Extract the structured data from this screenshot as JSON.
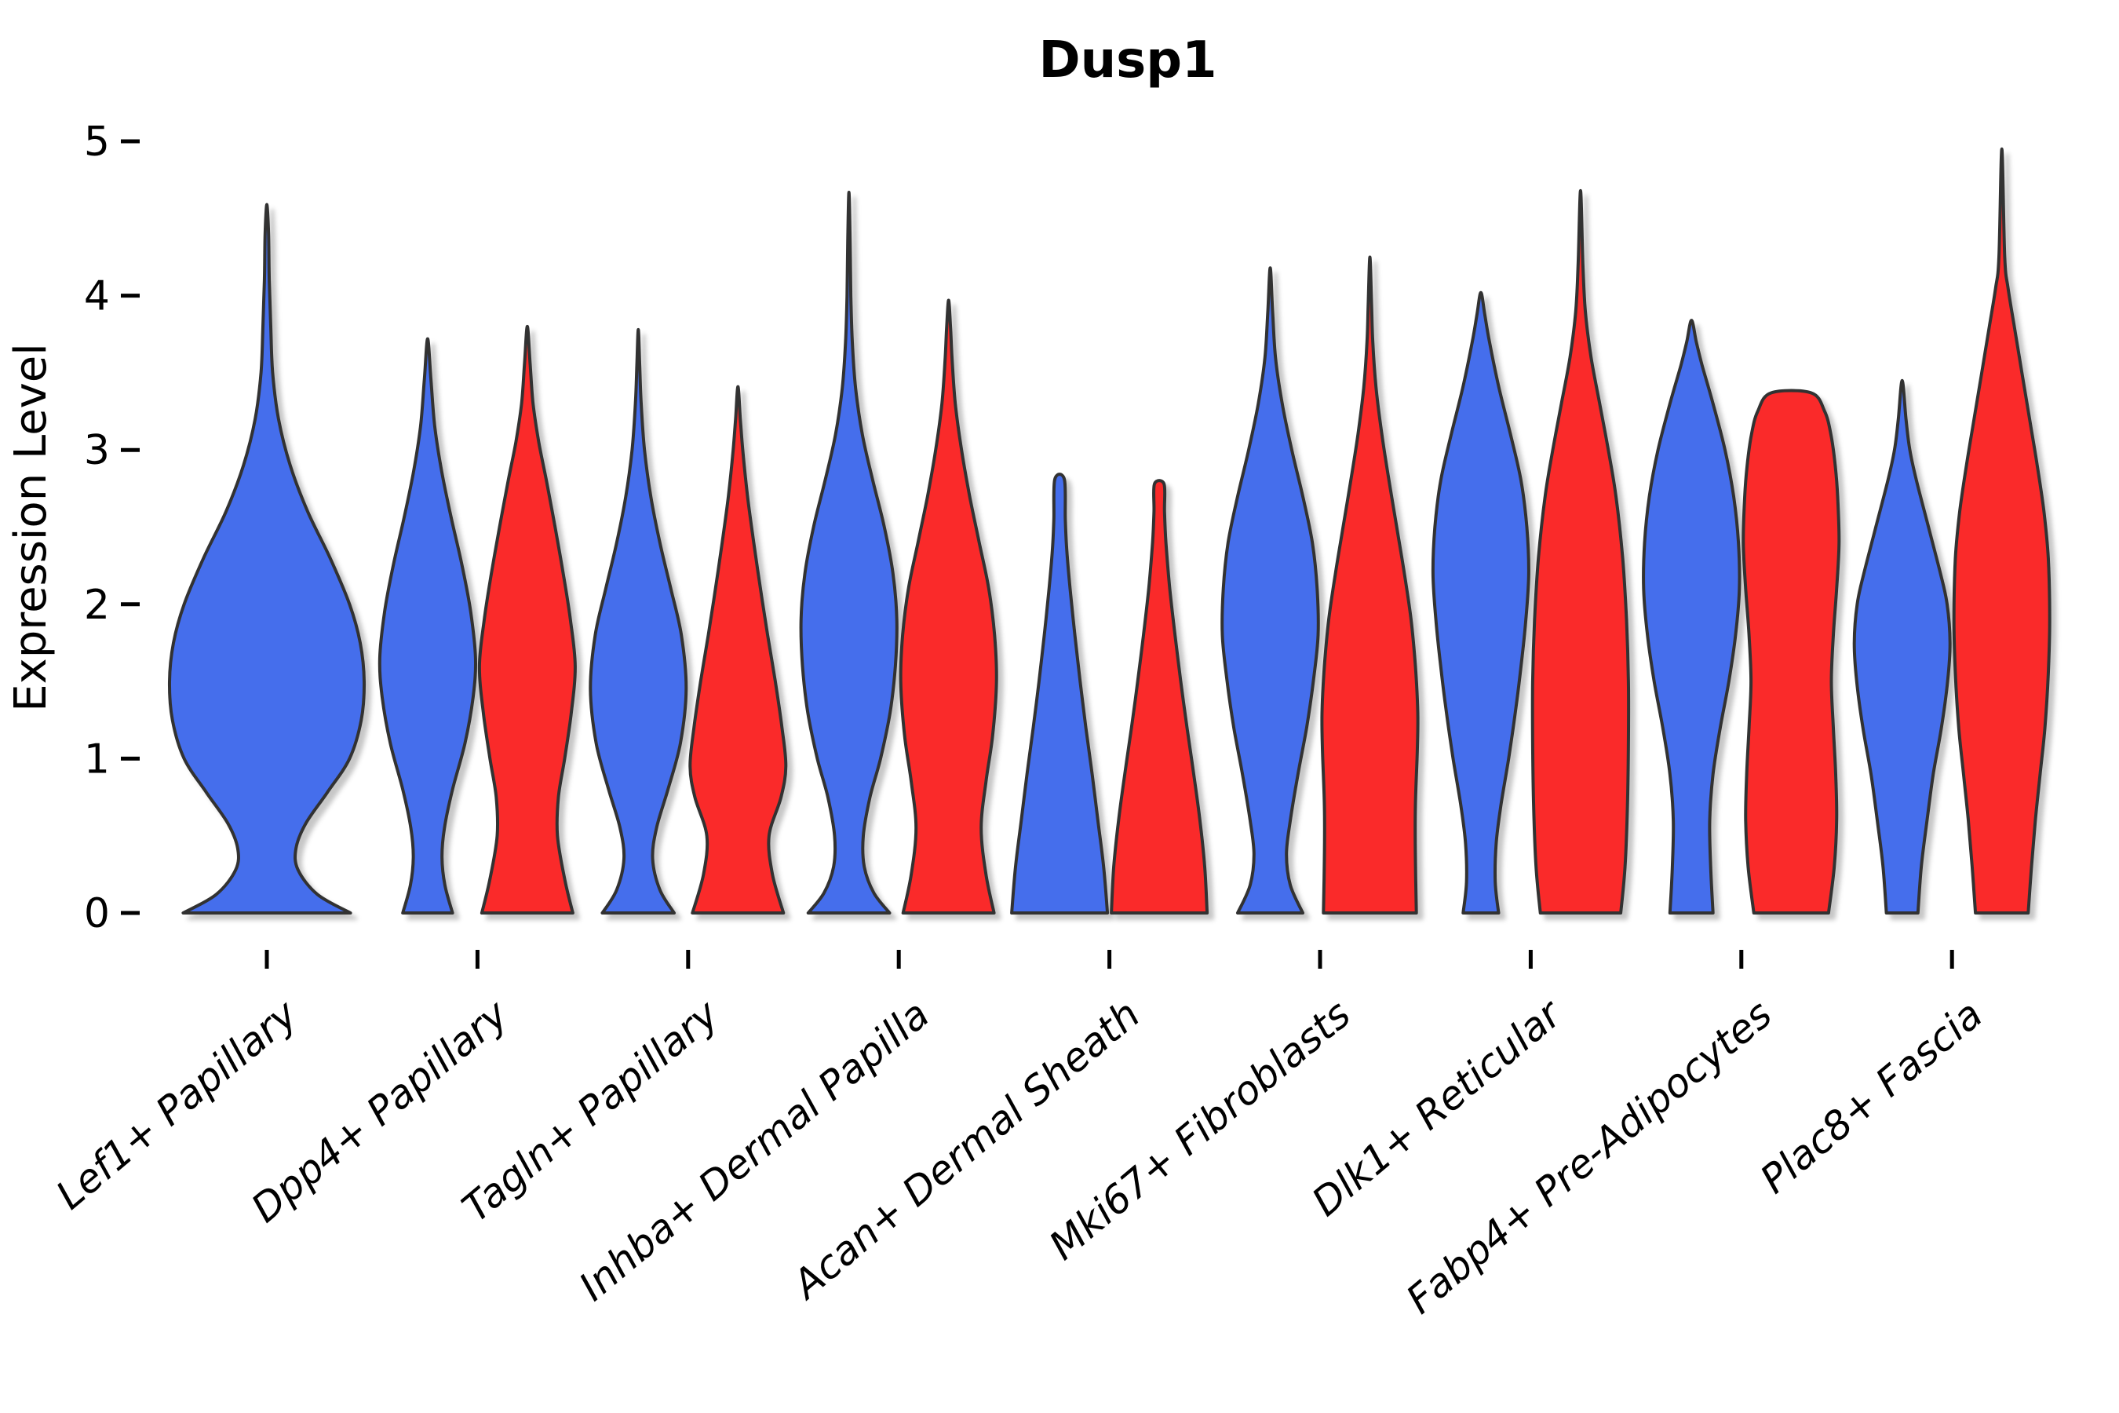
{
  "title": "Dusp1",
  "y_axis": {
    "label": "Expression Level",
    "ticks": [
      "0",
      "1",
      "2",
      "3",
      "4",
      "5"
    ]
  },
  "x_axis": {
    "categories": [
      "Lef1+ Papillary",
      "Dpp4+ Papillary",
      "Tagln+ Papillary",
      "Inhba+ Dermal Papilla",
      "Acan+ Dermal Sheath",
      "Mki67+ Fibroblasts",
      "Dlk1+ Reticular",
      "Fabp4+ Pre-Adipocytes",
      "Plac8+ Fascia"
    ]
  },
  "colors": {
    "blue": "#446EEC",
    "red": "#FA2B2B",
    "edge": "#333333",
    "axis": "#000000"
  },
  "chart_data": {
    "type": "violin",
    "title": "Dusp1",
    "xlabel": "",
    "ylabel": "Expression Level",
    "ylim": [
      0,
      5
    ],
    "grid": false,
    "legend": "none",
    "categories": [
      "Lef1+ Papillary",
      "Dpp4+ Papillary",
      "Tagln+ Papillary",
      "Inhba+ Dermal Papilla",
      "Acan+ Dermal Sheath",
      "Mki67+ Fibroblasts",
      "Dlk1+ Reticular",
      "Fabp4+ Pre-Adipocytes",
      "Plac8+ Fascia"
    ],
    "violins": [
      {
        "category": "Lef1+ Papillary",
        "group": "blue",
        "slot": "full",
        "peak": 4.59,
        "blunt": false,
        "profile": [
          [
            0,
            0.86
          ],
          [
            0.12,
            0.52
          ],
          [
            0.28,
            0.32
          ],
          [
            0.42,
            0.3
          ],
          [
            0.58,
            0.4
          ],
          [
            0.78,
            0.62
          ],
          [
            1.0,
            0.85
          ],
          [
            1.25,
            0.97
          ],
          [
            1.5,
            1.0
          ],
          [
            1.75,
            0.96
          ],
          [
            2.0,
            0.85
          ],
          [
            2.3,
            0.65
          ],
          [
            2.6,
            0.42
          ],
          [
            2.9,
            0.24
          ],
          [
            3.2,
            0.12
          ],
          [
            3.5,
            0.06
          ],
          [
            3.8,
            0.04
          ],
          [
            4.1,
            0.025
          ],
          [
            4.4,
            0.018
          ],
          [
            4.59,
            0
          ]
        ]
      },
      {
        "category": "Dpp4+ Papillary",
        "group": "blue",
        "slot": "left",
        "peak": 3.72,
        "blunt": false,
        "profile": [
          [
            0,
            0.52
          ],
          [
            0.18,
            0.36
          ],
          [
            0.36,
            0.3
          ],
          [
            0.55,
            0.35
          ],
          [
            0.8,
            0.52
          ],
          [
            1.1,
            0.78
          ],
          [
            1.4,
            0.95
          ],
          [
            1.65,
            1.0
          ],
          [
            1.95,
            0.9
          ],
          [
            2.25,
            0.72
          ],
          [
            2.55,
            0.5
          ],
          [
            2.85,
            0.3
          ],
          [
            3.15,
            0.15
          ],
          [
            3.45,
            0.07
          ],
          [
            3.72,
            0
          ]
        ]
      },
      {
        "category": "Dpp4+ Papillary",
        "group": "red",
        "slot": "right",
        "peak": 3.8,
        "blunt": false,
        "profile": [
          [
            0,
            0.95
          ],
          [
            0.22,
            0.78
          ],
          [
            0.5,
            0.63
          ],
          [
            0.75,
            0.65
          ],
          [
            1.0,
            0.78
          ],
          [
            1.3,
            0.92
          ],
          [
            1.6,
            1.0
          ],
          [
            1.9,
            0.9
          ],
          [
            2.2,
            0.75
          ],
          [
            2.5,
            0.58
          ],
          [
            2.8,
            0.4
          ],
          [
            3.05,
            0.24
          ],
          [
            3.3,
            0.12
          ],
          [
            3.55,
            0.06
          ],
          [
            3.8,
            0
          ]
        ]
      },
      {
        "category": "Tagln+ Papillary",
        "group": "blue",
        "slot": "left",
        "peak": 3.78,
        "blunt": false,
        "profile": [
          [
            0,
            0.75
          ],
          [
            0.15,
            0.45
          ],
          [
            0.35,
            0.3
          ],
          [
            0.55,
            0.38
          ],
          [
            0.8,
            0.62
          ],
          [
            1.1,
            0.88
          ],
          [
            1.45,
            1.0
          ],
          [
            1.8,
            0.9
          ],
          [
            2.1,
            0.68
          ],
          [
            2.4,
            0.45
          ],
          [
            2.7,
            0.26
          ],
          [
            3.0,
            0.13
          ],
          [
            3.3,
            0.06
          ],
          [
            3.55,
            0.03
          ],
          [
            3.78,
            0
          ]
        ]
      },
      {
        "category": "Tagln+ Papillary",
        "group": "red",
        "slot": "right",
        "peak": 3.41,
        "blunt": false,
        "profile": [
          [
            0,
            0.95
          ],
          [
            0.25,
            0.72
          ],
          [
            0.5,
            0.65
          ],
          [
            0.75,
            0.9
          ],
          [
            0.95,
            1.0
          ],
          [
            1.2,
            0.92
          ],
          [
            1.5,
            0.78
          ],
          [
            1.8,
            0.62
          ],
          [
            2.1,
            0.47
          ],
          [
            2.4,
            0.33
          ],
          [
            2.7,
            0.2
          ],
          [
            3.0,
            0.1
          ],
          [
            3.2,
            0.05
          ],
          [
            3.41,
            0
          ]
        ]
      },
      {
        "category": "Inhba+ Dermal Papilla",
        "group": "blue",
        "slot": "left",
        "peak": 4.67,
        "blunt": false,
        "profile": [
          [
            0,
            0.85
          ],
          [
            0.13,
            0.52
          ],
          [
            0.3,
            0.32
          ],
          [
            0.5,
            0.3
          ],
          [
            0.75,
            0.44
          ],
          [
            1.0,
            0.66
          ],
          [
            1.3,
            0.86
          ],
          [
            1.6,
            0.97
          ],
          [
            1.9,
            1.0
          ],
          [
            2.2,
            0.92
          ],
          [
            2.5,
            0.74
          ],
          [
            2.8,
            0.5
          ],
          [
            3.1,
            0.28
          ],
          [
            3.4,
            0.14
          ],
          [
            3.7,
            0.07
          ],
          [
            4.0,
            0.04
          ],
          [
            4.35,
            0.025
          ],
          [
            4.67,
            0
          ]
        ]
      },
      {
        "category": "Inhba+ Dermal Papilla",
        "group": "red",
        "slot": "right",
        "peak": 3.97,
        "blunt": false,
        "profile": [
          [
            0,
            0.95
          ],
          [
            0.25,
            0.78
          ],
          [
            0.55,
            0.68
          ],
          [
            0.85,
            0.78
          ],
          [
            1.15,
            0.92
          ],
          [
            1.5,
            1.0
          ],
          [
            1.8,
            0.96
          ],
          [
            2.1,
            0.84
          ],
          [
            2.4,
            0.64
          ],
          [
            2.7,
            0.44
          ],
          [
            3.0,
            0.27
          ],
          [
            3.3,
            0.14
          ],
          [
            3.6,
            0.07
          ],
          [
            3.8,
            0.04
          ],
          [
            3.97,
            0
          ]
        ]
      },
      {
        "category": "Acan+ Dermal Sheath",
        "group": "blue",
        "slot": "left",
        "peak": 2.81,
        "blunt": true,
        "profile": [
          [
            0,
            1.0
          ],
          [
            0.3,
            0.92
          ],
          [
            0.6,
            0.8
          ],
          [
            0.9,
            0.68
          ],
          [
            1.2,
            0.55
          ],
          [
            1.5,
            0.43
          ],
          [
            1.8,
            0.32
          ],
          [
            2.1,
            0.22
          ],
          [
            2.35,
            0.15
          ],
          [
            2.55,
            0.12
          ],
          [
            2.81,
            0.1
          ]
        ]
      },
      {
        "category": "Acan+ Dermal Sheath",
        "group": "red",
        "slot": "right",
        "peak": 2.78,
        "blunt": true,
        "profile": [
          [
            0,
            1.0
          ],
          [
            0.3,
            0.95
          ],
          [
            0.6,
            0.85
          ],
          [
            0.9,
            0.72
          ],
          [
            1.2,
            0.58
          ],
          [
            1.5,
            0.45
          ],
          [
            1.8,
            0.33
          ],
          [
            2.1,
            0.22
          ],
          [
            2.4,
            0.14
          ],
          [
            2.6,
            0.11
          ],
          [
            2.78,
            0.1
          ]
        ]
      },
      {
        "category": "Mki67+ Fibroblasts",
        "group": "blue",
        "slot": "left",
        "peak": 4.18,
        "blunt": false,
        "profile": [
          [
            0,
            0.68
          ],
          [
            0.18,
            0.42
          ],
          [
            0.38,
            0.34
          ],
          [
            0.6,
            0.42
          ],
          [
            0.9,
            0.58
          ],
          [
            1.2,
            0.76
          ],
          [
            1.5,
            0.9
          ],
          [
            1.8,
            1.0
          ],
          [
            2.1,
            0.98
          ],
          [
            2.4,
            0.88
          ],
          [
            2.7,
            0.68
          ],
          [
            3.0,
            0.45
          ],
          [
            3.3,
            0.25
          ],
          [
            3.6,
            0.11
          ],
          [
            3.9,
            0.05
          ],
          [
            4.18,
            0
          ]
        ]
      },
      {
        "category": "Mki67+ Fibroblasts",
        "group": "red",
        "slot": "right",
        "peak": 4.25,
        "blunt": false,
        "profile": [
          [
            0,
            0.97
          ],
          [
            0.35,
            0.95
          ],
          [
            0.7,
            0.95
          ],
          [
            1.05,
            0.99
          ],
          [
            1.3,
            1.0
          ],
          [
            1.6,
            0.95
          ],
          [
            1.9,
            0.86
          ],
          [
            2.2,
            0.72
          ],
          [
            2.5,
            0.56
          ],
          [
            2.8,
            0.4
          ],
          [
            3.1,
            0.25
          ],
          [
            3.4,
            0.13
          ],
          [
            3.7,
            0.06
          ],
          [
            3.95,
            0.035
          ],
          [
            4.25,
            0
          ]
        ]
      },
      {
        "category": "Dlk1+ Reticular",
        "group": "blue",
        "slot": "left",
        "peak": 4.02,
        "blunt": false,
        "profile": [
          [
            0,
            0.37
          ],
          [
            0.2,
            0.3
          ],
          [
            0.45,
            0.32
          ],
          [
            0.7,
            0.42
          ],
          [
            1.0,
            0.58
          ],
          [
            1.3,
            0.72
          ],
          [
            1.6,
            0.84
          ],
          [
            1.9,
            0.94
          ],
          [
            2.2,
            1.0
          ],
          [
            2.5,
            0.96
          ],
          [
            2.8,
            0.84
          ],
          [
            3.1,
            0.62
          ],
          [
            3.4,
            0.38
          ],
          [
            3.7,
            0.18
          ],
          [
            3.88,
            0.08
          ],
          [
            4.02,
            0
          ]
        ]
      },
      {
        "category": "Dlk1+ Reticular",
        "group": "red",
        "slot": "right",
        "peak": 4.68,
        "blunt": false,
        "profile": [
          [
            0,
            0.84
          ],
          [
            0.3,
            0.93
          ],
          [
            0.7,
            0.98
          ],
          [
            1.1,
            1.0
          ],
          [
            1.5,
            1.0
          ],
          [
            1.9,
            0.96
          ],
          [
            2.3,
            0.88
          ],
          [
            2.7,
            0.74
          ],
          [
            3.0,
            0.58
          ],
          [
            3.3,
            0.4
          ],
          [
            3.6,
            0.22
          ],
          [
            3.9,
            0.1
          ],
          [
            4.2,
            0.05
          ],
          [
            4.68,
            0
          ]
        ]
      },
      {
        "category": "Fabp4+ Pre-Adipocytes",
        "group": "blue",
        "slot": "left",
        "peak": 3.84,
        "blunt": false,
        "profile": [
          [
            0,
            0.45
          ],
          [
            0.3,
            0.4
          ],
          [
            0.6,
            0.38
          ],
          [
            0.9,
            0.45
          ],
          [
            1.2,
            0.6
          ],
          [
            1.5,
            0.78
          ],
          [
            1.8,
            0.92
          ],
          [
            2.1,
            1.0
          ],
          [
            2.4,
            0.98
          ],
          [
            2.7,
            0.88
          ],
          [
            3.0,
            0.7
          ],
          [
            3.3,
            0.45
          ],
          [
            3.55,
            0.22
          ],
          [
            3.7,
            0.1
          ],
          [
            3.84,
            0
          ]
        ]
      },
      {
        "category": "Fabp4+ Pre-Adipocytes",
        "group": "red",
        "slot": "right",
        "peak": 3.37,
        "blunt": true,
        "profile": [
          [
            0,
            0.78
          ],
          [
            0.3,
            0.9
          ],
          [
            0.6,
            0.95
          ],
          [
            0.9,
            0.93
          ],
          [
            1.2,
            0.88
          ],
          [
            1.5,
            0.84
          ],
          [
            1.8,
            0.88
          ],
          [
            2.1,
            0.95
          ],
          [
            2.4,
            1.0
          ],
          [
            2.7,
            0.97
          ],
          [
            2.9,
            0.92
          ],
          [
            3.1,
            0.83
          ],
          [
            3.25,
            0.7
          ],
          [
            3.37,
            0.42
          ]
        ]
      },
      {
        "category": "Plac8+ Fascia",
        "group": "blue",
        "slot": "left",
        "peak": 3.45,
        "blunt": false,
        "profile": [
          [
            0,
            0.33
          ],
          [
            0.3,
            0.4
          ],
          [
            0.6,
            0.52
          ],
          [
            0.9,
            0.65
          ],
          [
            1.2,
            0.82
          ],
          [
            1.5,
            0.95
          ],
          [
            1.75,
            1.0
          ],
          [
            2.0,
            0.94
          ],
          [
            2.2,
            0.8
          ],
          [
            2.5,
            0.55
          ],
          [
            2.8,
            0.3
          ],
          [
            3.0,
            0.16
          ],
          [
            3.2,
            0.08
          ],
          [
            3.45,
            0
          ]
        ]
      },
      {
        "category": "Plac8+ Fascia",
        "group": "red",
        "slot": "right",
        "peak": 4.95,
        "blunt": false,
        "profile": [
          [
            0,
            0.55
          ],
          [
            0.3,
            0.62
          ],
          [
            0.6,
            0.7
          ],
          [
            0.9,
            0.8
          ],
          [
            1.2,
            0.9
          ],
          [
            1.55,
            0.97
          ],
          [
            1.9,
            1.0
          ],
          [
            2.3,
            0.97
          ],
          [
            2.6,
            0.88
          ],
          [
            2.9,
            0.74
          ],
          [
            3.2,
            0.58
          ],
          [
            3.5,
            0.42
          ],
          [
            3.8,
            0.26
          ],
          [
            4.05,
            0.13
          ],
          [
            4.25,
            0.06
          ],
          [
            4.95,
            0
          ]
        ]
      }
    ]
  }
}
